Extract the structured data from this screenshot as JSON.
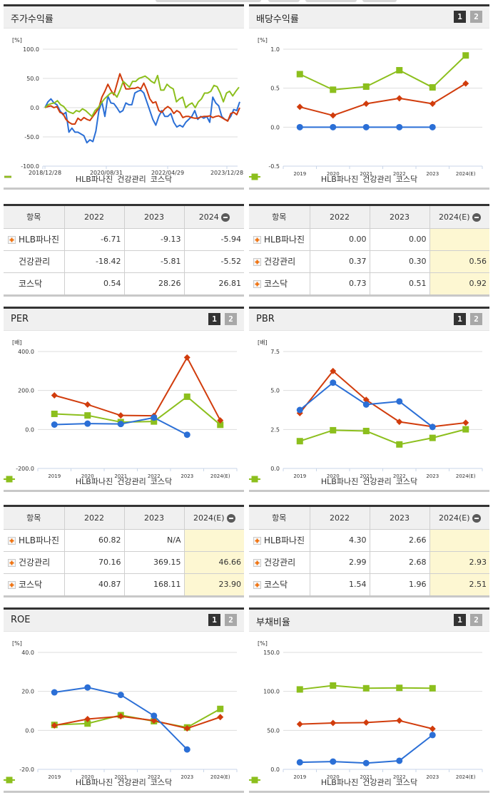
{
  "colors": {
    "hlb": "#2b6fd6",
    "health": "#d13c0c",
    "kosdaq": "#8cbf1d",
    "grid": "#dddddd",
    "axis_text": "#333333"
  },
  "legend": {
    "series": [
      "HLB파나진",
      "건강관리",
      "코스닥"
    ]
  },
  "pager": {
    "page1": "1",
    "page2": "2"
  },
  "panels": {
    "stock_return": {
      "title": "주가수익률",
      "unit": "[%]"
    },
    "dividend": {
      "title": "배당수익률",
      "unit": "[%]"
    },
    "per": {
      "title": "PER",
      "unit": "[배]"
    },
    "pbr": {
      "title": "PBR",
      "unit": "[배]"
    },
    "roe": {
      "title": "ROE",
      "unit": "[%]"
    },
    "debt": {
      "title": "부채비율",
      "unit": "[%]"
    }
  },
  "tables": {
    "stock_return": {
      "headers": [
        "항목",
        "2022",
        "2023",
        "2024"
      ],
      "rows": [
        {
          "label": "HLB파나진",
          "expand": true,
          "values": [
            "-6.71",
            "-9.13",
            "-5.94"
          ]
        },
        {
          "label": "건강관리",
          "expand": false,
          "values": [
            "-18.42",
            "-5.81",
            "-5.52"
          ]
        },
        {
          "label": "코스닥",
          "expand": false,
          "values": [
            "0.54",
            "28.26",
            "26.81"
          ]
        }
      ]
    },
    "dividend": {
      "headers": [
        "항목",
        "2022",
        "2023",
        "2024(E)"
      ],
      "rows": [
        {
          "label": "HLB파나진",
          "expand": true,
          "values": [
            "0.00",
            "0.00",
            ""
          ]
        },
        {
          "label": "건강관리",
          "expand": true,
          "values": [
            "0.37",
            "0.30",
            "0.56"
          ]
        },
        {
          "label": "코스닥",
          "expand": true,
          "values": [
            "0.73",
            "0.51",
            "0.92"
          ]
        }
      ]
    },
    "per": {
      "headers": [
        "항목",
        "2022",
        "2023",
        "2024(E)"
      ],
      "rows": [
        {
          "label": "HLB파나진",
          "expand": true,
          "values": [
            "60.82",
            "N/A",
            ""
          ]
        },
        {
          "label": "건강관리",
          "expand": true,
          "values": [
            "70.16",
            "369.15",
            "46.66"
          ]
        },
        {
          "label": "코스닥",
          "expand": true,
          "values": [
            "40.87",
            "168.11",
            "23.90"
          ]
        }
      ]
    },
    "pbr": {
      "headers": [
        "항목",
        "2022",
        "2023",
        "2024(E)"
      ],
      "rows": [
        {
          "label": "HLB파나진",
          "expand": true,
          "values": [
            "4.30",
            "2.66",
            ""
          ]
        },
        {
          "label": "건강관리",
          "expand": true,
          "values": [
            "2.99",
            "2.68",
            "2.93"
          ]
        },
        {
          "label": "코스닥",
          "expand": true,
          "values": [
            "1.54",
            "1.96",
            "2.51"
          ]
        }
      ]
    }
  },
  "chart_data": [
    {
      "id": "stock_return",
      "type": "line",
      "title": "주가수익률",
      "ylabel": "[%]",
      "ylim": [
        -100,
        100
      ],
      "yticks": [
        "100.0",
        "50.0",
        "0.0",
        "-50.0",
        "-100.0"
      ],
      "xtick_labels": [
        "2018/12/28",
        "2020/08/31",
        "2022/04/29",
        "2023/12/28"
      ],
      "grid": true,
      "legend_position": "bottom",
      "series": [
        {
          "name": "HLB파나진",
          "values": [
            0,
            10,
            15,
            8,
            5,
            -5,
            -12,
            -8,
            -42,
            -35,
            -42,
            -42,
            -45,
            -48,
            -60,
            -55,
            -58,
            -40,
            -5,
            10,
            -15,
            20,
            8,
            7,
            0,
            -8,
            -5,
            8,
            5,
            5,
            25,
            28,
            30,
            25,
            10,
            -5,
            -20,
            -30,
            -15,
            -5,
            -15,
            -15,
            -10,
            -25,
            -33,
            -30,
            -33,
            -25,
            -20,
            -15,
            -5,
            -20,
            -15,
            -18,
            -15,
            -25,
            18,
            8,
            3,
            -15,
            -20,
            -22,
            -15,
            -3,
            -5,
            10
          ]
        },
        {
          "name": "건강관리",
          "values": [
            0,
            2,
            3,
            0,
            2,
            -8,
            -10,
            -20,
            -25,
            -28,
            -28,
            -18,
            -22,
            -17,
            -20,
            -22,
            -15,
            -8,
            0,
            18,
            28,
            40,
            30,
            22,
            40,
            58,
            45,
            32,
            32,
            33,
            33,
            35,
            32,
            42,
            30,
            15,
            8,
            10,
            -5,
            -8,
            -2,
            2,
            -2,
            -10,
            -5,
            -8,
            -17,
            -15,
            -15,
            -17,
            -18,
            -18,
            -16,
            -15,
            -15,
            -14,
            -17,
            -15,
            -14,
            -17,
            -20,
            -23,
            -10,
            -8,
            -12,
            0
          ]
        },
        {
          "name": "코스닥",
          "values": [
            0,
            5,
            7,
            8,
            12,
            5,
            2,
            -5,
            -8,
            -10,
            -5,
            -7,
            -2,
            -5,
            -10,
            -15,
            -5,
            0,
            8,
            15,
            20,
            25,
            25,
            18,
            30,
            45,
            40,
            35,
            45,
            45,
            50,
            52,
            54,
            50,
            45,
            42,
            55,
            30,
            30,
            40,
            35,
            32,
            10,
            15,
            18,
            0,
            5,
            8,
            0,
            10,
            15,
            25,
            25,
            28,
            38,
            36,
            25,
            10,
            25,
            28,
            20,
            28,
            35
          ]
        }
      ]
    },
    {
      "id": "dividend",
      "type": "line",
      "title": "배당수익률",
      "ylabel": "[%]",
      "ylim": [
        -0.5,
        1.0
      ],
      "yticks": [
        "1.0",
        "0.5",
        "0.0",
        "-0.5"
      ],
      "categories": [
        "2019",
        "2020",
        "2021",
        "2022",
        "2023",
        "2024(E)"
      ],
      "grid": true,
      "legend_position": "bottom",
      "series": [
        {
          "name": "HLB파나진",
          "marker": "circle",
          "values": [
            0.0,
            0.0,
            0.0,
            0.0,
            0.0,
            null
          ]
        },
        {
          "name": "건강관리",
          "marker": "diamond",
          "values": [
            0.26,
            0.15,
            0.3,
            0.37,
            0.3,
            0.56
          ]
        },
        {
          "name": "코스닥",
          "marker": "square",
          "values": [
            0.68,
            0.48,
            0.52,
            0.73,
            0.51,
            0.92
          ]
        }
      ]
    },
    {
      "id": "per",
      "type": "line",
      "title": "PER",
      "ylabel": "[배]",
      "ylim": [
        -200,
        400
      ],
      "yticks": [
        "400.0",
        "200.0",
        "0.0",
        "-200.0"
      ],
      "categories": [
        "2019",
        "2020",
        "2021",
        "2022",
        "2023",
        "2024(E)"
      ],
      "grid": true,
      "legend_position": "bottom",
      "series": [
        {
          "name": "HLB파나진",
          "marker": "circle",
          "values": [
            25,
            30,
            28,
            60.82,
            -27,
            null
          ]
        },
        {
          "name": "건강관리",
          "marker": "diamond",
          "values": [
            175,
            128,
            72,
            70.16,
            369.15,
            46.66
          ]
        },
        {
          "name": "코스닥",
          "marker": "square",
          "values": [
            80,
            72,
            38,
            40.87,
            168.11,
            23.9
          ]
        }
      ]
    },
    {
      "id": "pbr",
      "type": "line",
      "title": "PBR",
      "ylabel": "[배]",
      "ylim": [
        0,
        7.5
      ],
      "yticks": [
        "7.5",
        "5.0",
        "2.5",
        "0.0"
      ],
      "categories": [
        "2019",
        "2020",
        "2021",
        "2022",
        "2023",
        "2024(E)"
      ],
      "grid": true,
      "legend_position": "bottom",
      "series": [
        {
          "name": "HLB파나진",
          "marker": "circle",
          "values": [
            3.75,
            5.5,
            4.1,
            4.3,
            2.66,
            null
          ]
        },
        {
          "name": "건강관리",
          "marker": "diamond",
          "values": [
            3.55,
            6.25,
            4.4,
            2.99,
            2.68,
            2.93
          ]
        },
        {
          "name": "코스닥",
          "marker": "square",
          "values": [
            1.75,
            2.45,
            2.4,
            1.54,
            1.96,
            2.51
          ]
        }
      ]
    },
    {
      "id": "roe",
      "type": "line",
      "title": "ROE",
      "ylabel": "[%]",
      "ylim": [
        -20,
        40
      ],
      "yticks": [
        "40.0",
        "20.0",
        "0.0",
        "-20.0"
      ],
      "categories": [
        "2019",
        "2020",
        "2021",
        "2022",
        "2023",
        "2024(E)"
      ],
      "grid": true,
      "legend_position": "bottom",
      "series": [
        {
          "name": "HLB파나진",
          "marker": "circle",
          "values": [
            19.5,
            22.0,
            18.2,
            7.5,
            -9.8,
            null
          ]
        },
        {
          "name": "건강관리",
          "marker": "diamond",
          "values": [
            2.5,
            5.8,
            7.2,
            5.0,
            1.0,
            6.8
          ]
        },
        {
          "name": "코스닥",
          "marker": "square",
          "values": [
            2.8,
            3.5,
            7.8,
            4.7,
            1.5,
            11.0
          ]
        }
      ]
    },
    {
      "id": "debt",
      "type": "line",
      "title": "부채비율",
      "ylabel": "[%]",
      "ylim": [
        0,
        150
      ],
      "yticks": [
        "150.0",
        "100.0",
        "50.0",
        "0.0"
      ],
      "categories": [
        "2019",
        "2020",
        "2021",
        "2022",
        "2023",
        "2024(E)"
      ],
      "grid": true,
      "legend_position": "bottom",
      "series": [
        {
          "name": "HLB파나진",
          "marker": "circle",
          "values": [
            9,
            10,
            8,
            11,
            44,
            null
          ]
        },
        {
          "name": "건강관리",
          "marker": "diamond",
          "values": [
            58,
            59.5,
            60,
            62.5,
            52,
            null
          ]
        },
        {
          "name": "코스닥",
          "marker": "square",
          "values": [
            102.5,
            107.5,
            104,
            104.5,
            104,
            null
          ]
        }
      ]
    }
  ]
}
